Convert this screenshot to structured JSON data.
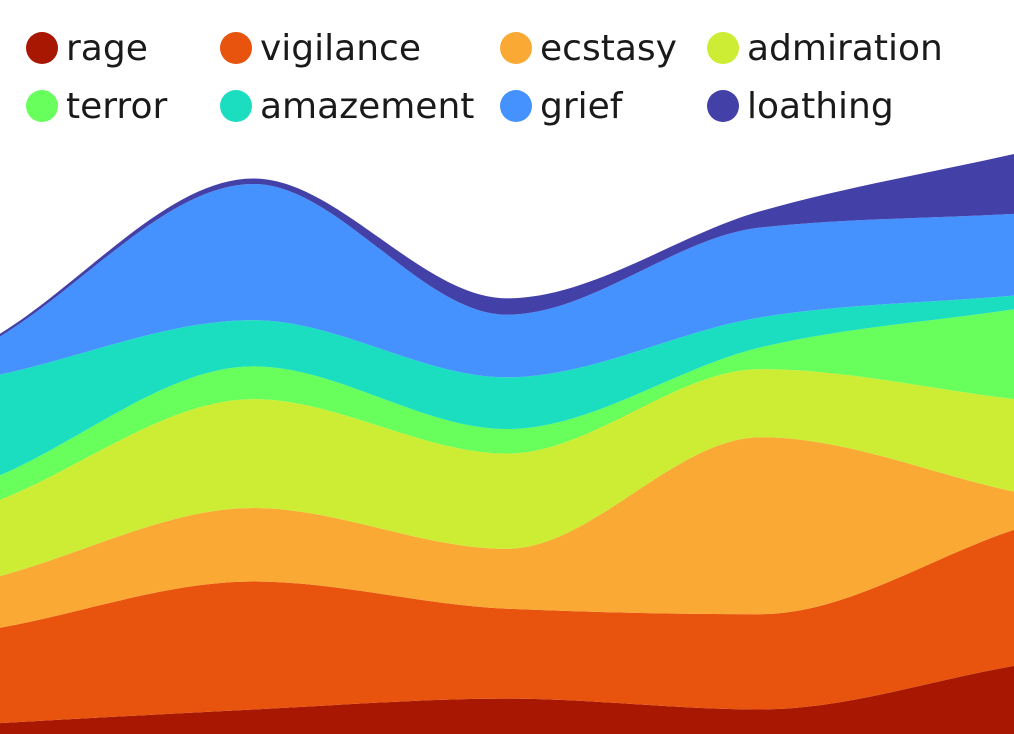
{
  "chart_data": {
    "type": "area",
    "stacked": true,
    "smooth": true,
    "x": [
      0,
      1,
      2,
      3,
      4
    ],
    "series": [
      {
        "name": "rage",
        "color": "#a81702",
        "values": [
          4,
          9,
          13,
          9,
          25
        ]
      },
      {
        "name": "vigilance",
        "color": "#e8530e",
        "values": [
          35,
          47,
          33,
          35,
          50
        ]
      },
      {
        "name": "ecstasy",
        "color": "#fba935",
        "values": [
          19,
          27,
          22,
          65,
          14
        ]
      },
      {
        "name": "admiration",
        "color": "#cced34",
        "values": [
          28,
          40,
          35,
          25,
          34
        ]
      },
      {
        "name": "terror",
        "color": "#68ff5c",
        "values": [
          9,
          12,
          9,
          8,
          33
        ]
      },
      {
        "name": "amazement",
        "color": "#1bdec1",
        "values": [
          37,
          17,
          19,
          11,
          5
        ]
      },
      {
        "name": "grief",
        "color": "#4592fe",
        "values": [
          14,
          50,
          23,
          33,
          30
        ]
      },
      {
        "name": "loathing",
        "color": "#4340a8",
        "values": [
          1,
          2,
          6,
          6,
          22
        ]
      }
    ],
    "grid": false,
    "axes_visible": false,
    "legend_position": "top-left"
  }
}
